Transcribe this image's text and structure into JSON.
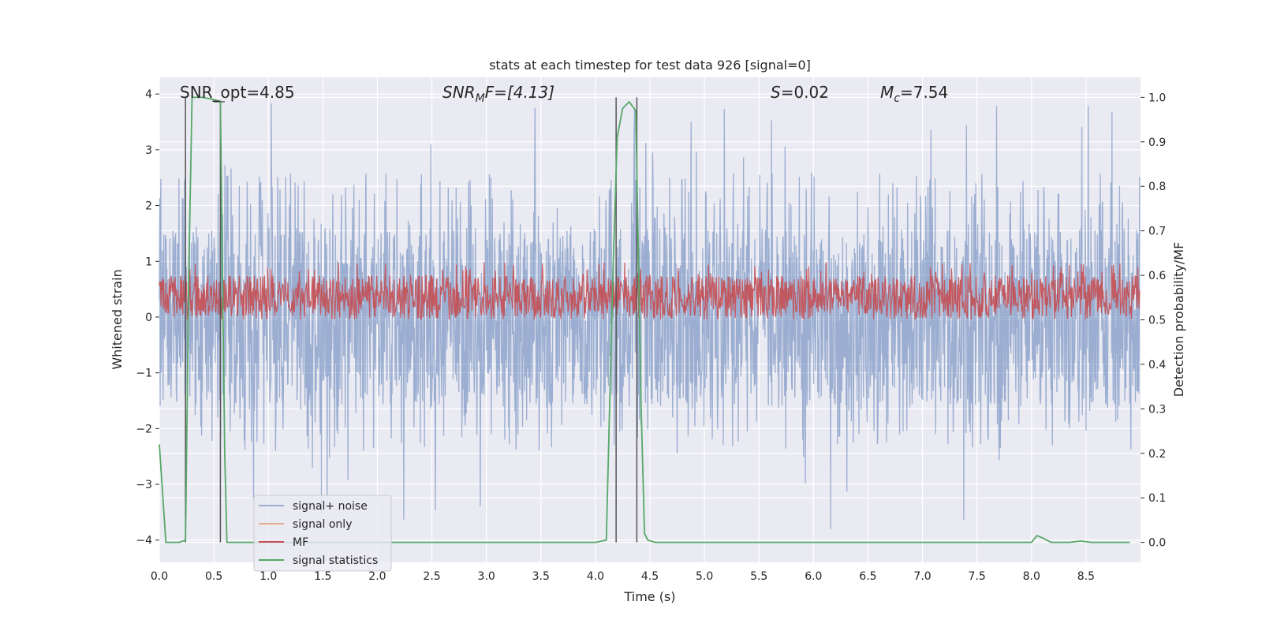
{
  "chart_data": {
    "type": "line",
    "title": "stats at each timestep for test data 926 [signal=0]",
    "xlabel": "Time (s)",
    "ylabel_left": "Whitened strain",
    "ylabel_right": "Detection probability/MF",
    "xlim": [
      0.0,
      9.0
    ],
    "ylim_left": [
      -4.4,
      4.3
    ],
    "ylim_right": [
      -0.045,
      1.045
    ],
    "x_ticks": [
      0.0,
      0.5,
      1.0,
      1.5,
      2.0,
      2.5,
      3.0,
      3.5,
      4.0,
      4.5,
      5.0,
      5.5,
      6.0,
      6.5,
      7.0,
      7.5,
      8.0,
      8.5
    ],
    "x_tick_labels": [
      "0.0",
      "0.5",
      "1.0",
      "1.5",
      "2.0",
      "2.5",
      "3.0",
      "3.5",
      "4.0",
      "4.5",
      "5.0",
      "5.5",
      "6.0",
      "6.5",
      "7.0",
      "7.5",
      "8.0",
      "8.5"
    ],
    "y_ticks_left": [
      -4,
      -3,
      -2,
      -1,
      0,
      1,
      2,
      3,
      4
    ],
    "y_tick_labels_left": [
      "−4",
      "−3",
      "−2",
      "−1",
      "0",
      "1",
      "2",
      "3",
      "4"
    ],
    "y_ticks_right": [
      0.0,
      0.1,
      0.2,
      0.3,
      0.4,
      0.5,
      0.6,
      0.7,
      0.8,
      0.9,
      1.0
    ],
    "y_tick_labels_right": [
      "0.0",
      "0.1",
      "0.2",
      "0.3",
      "0.4",
      "0.5",
      "0.6",
      "0.7",
      "0.8",
      "0.9",
      "1.0"
    ],
    "annotations": {
      "snr_opt": "SNR_opt=4.85",
      "snr_mf_main": "SNR",
      "snr_mf_sub": "M",
      "snr_mf_tail": "F=[4.13]",
      "s_label": "S",
      "s_value": "=0.02",
      "mc_main": "M",
      "mc_sub": "c",
      "mc_value": "=7.54"
    },
    "legend": {
      "location": "lower-left",
      "entries": [
        {
          "label": "signal+ noise",
          "color": "#4c72b0"
        },
        {
          "label": "signal only",
          "color": "#dd8452"
        },
        {
          "label": "MF",
          "color": "#c44e52"
        },
        {
          "label": "signal statistics",
          "color": "#55a868"
        }
      ]
    },
    "series": [
      {
        "name": "signal+ noise",
        "axis": "left",
        "color": "#4c72b0",
        "opacity": 0.5,
        "description": "whitened noise trace, dense band roughly -1.6 to 1.6 with spikes up to about 4 and down to -4",
        "band": [
          -1.6,
          1.6
        ],
        "peak_max": 3.95,
        "peak_min": -4.0
      },
      {
        "name": "signal only",
        "axis": "left",
        "color": "#dd8452",
        "values": [
          0
        ]
      },
      {
        "name": "MF",
        "axis": "right",
        "color": "#c44e52",
        "description": "matched-filter output oscillating between about 0.5 and 0.6",
        "band": [
          0.5,
          0.6
        ],
        "peak_max": 0.63
      },
      {
        "name": "signal statistics",
        "axis": "right",
        "color": "#55a868",
        "x": [
          0.0,
          0.06,
          0.18,
          0.24,
          0.27,
          0.3,
          0.4,
          0.5,
          0.56,
          0.6,
          0.62,
          0.7,
          1.0,
          2.0,
          3.0,
          4.0,
          4.1,
          4.16,
          4.2,
          4.25,
          4.31,
          4.37,
          4.42,
          4.45,
          4.48,
          4.55,
          5.0,
          6.0,
          7.0,
          7.5,
          8.0,
          8.05,
          8.1,
          8.18,
          8.35,
          8.45,
          8.55,
          8.9
        ],
        "y": [
          0.22,
          0.0,
          0.0,
          0.005,
          0.6,
          1.0,
          1.0,
          0.995,
          0.99,
          0.2,
          0.0,
          0.0,
          0.0,
          0.0,
          0.0,
          0.0,
          0.005,
          0.6,
          0.91,
          0.975,
          0.99,
          0.97,
          0.3,
          0.02,
          0.005,
          0.0,
          0.0,
          0.0,
          0.0,
          0.0,
          0.0,
          0.015,
          0.01,
          0.0,
          0.0,
          0.003,
          0.0,
          0.0
        ]
      }
    ],
    "vertical_markers": [
      {
        "x": 0.24,
        "y_from": 0.0,
        "y_to": 1.0
      },
      {
        "x": 0.56,
        "y_from": 0.0,
        "y_to": 0.99
      },
      {
        "x": 4.19,
        "y_from": 0.0,
        "y_to": 1.0
      },
      {
        "x": 4.38,
        "y_from": 0.0,
        "y_to": 1.0
      }
    ]
  }
}
